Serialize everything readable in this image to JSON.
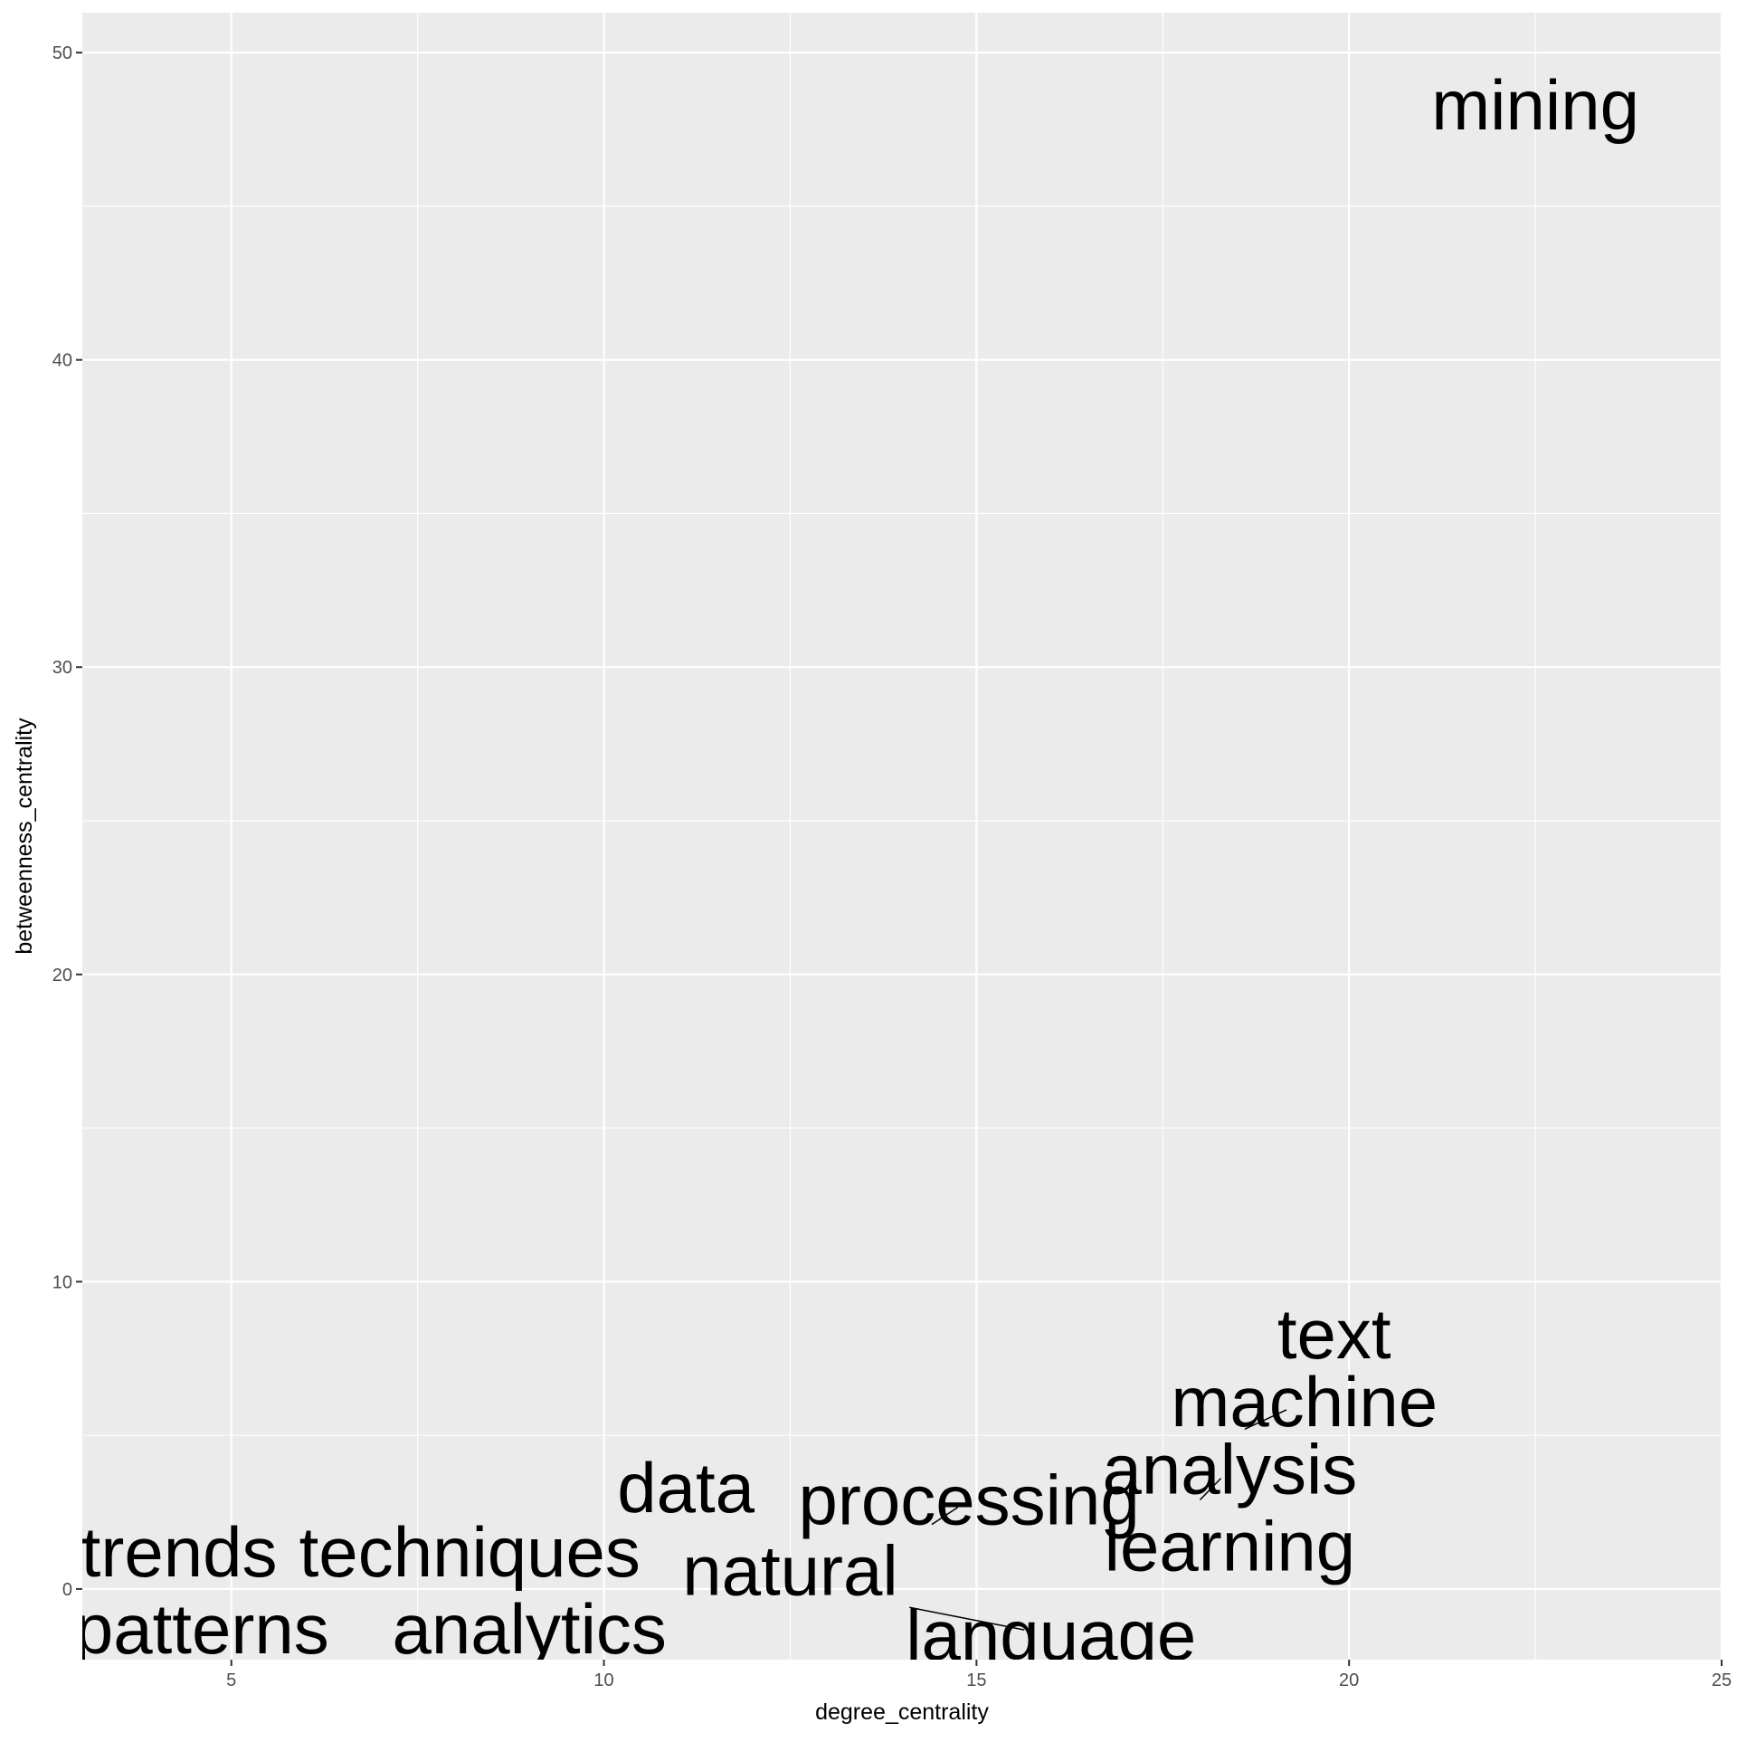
{
  "chart_data": {
    "type": "scatter",
    "title": "",
    "xlabel": "degree_centrality",
    "ylabel": "betweenness_centrality",
    "xlim": [
      3,
      25
    ],
    "ylim": [
      -2.3,
      51.3
    ],
    "x_ticks": [
      5,
      10,
      15,
      20,
      25
    ],
    "y_ticks": [
      0,
      10,
      20,
      30,
      40,
      50
    ],
    "grid": true,
    "legend": "none",
    "colors": {
      "panel_background": "#ebebeb",
      "grid_line": "#ffffff",
      "label_text": "#000000",
      "tick_text": "#4d4d4d",
      "tick_mark": "#333333"
    },
    "points": [
      {
        "label": "mining",
        "x": 22,
        "y": 48.5
      },
      {
        "label": "text",
        "x": 19.4,
        "y": 8
      },
      {
        "label": "machine",
        "x": 18.6,
        "y": 5.2
      },
      {
        "label": "analysis",
        "x": 18,
        "y": 2.9
      },
      {
        "label": "learning",
        "x": 17.9,
        "y": 1.4
      },
      {
        "label": "data",
        "x": 11.1,
        "y": 3.3
      },
      {
        "label": "processing",
        "x": 14.4,
        "y": 2.1
      },
      {
        "label": "natural",
        "x": 14,
        "y": 0.1
      },
      {
        "label": "language",
        "x": 14.1,
        "y": -0.6
      },
      {
        "label": "trends",
        "x": 4.3,
        "y": 1.2
      },
      {
        "label": "techniques",
        "x": 8.2,
        "y": 1.2
      },
      {
        "label": "patterns",
        "x": 4.4,
        "y": -1.4
      },
      {
        "label": "analytics",
        "x": 9,
        "y": -1.4
      }
    ],
    "text_labels": [
      {
        "label": "mining",
        "x": 22.5,
        "y": 48.3,
        "segment": false
      },
      {
        "label": "text",
        "x": 19.8,
        "y": 8.3,
        "segment": false
      },
      {
        "label": "machine",
        "x": 19.4,
        "y": 6.1,
        "segment": true
      },
      {
        "label": "analysis",
        "x": 18.4,
        "y": 3.9,
        "segment": true
      },
      {
        "label": "learning",
        "x": 18.4,
        "y": 1.4,
        "segment": false
      },
      {
        "label": "data",
        "x": 11.1,
        "y": 3.3,
        "segment": false
      },
      {
        "label": "processing",
        "x": 14.9,
        "y": 2.9,
        "segment": true
      },
      {
        "label": "natural",
        "x": 12.5,
        "y": 0.6,
        "segment": false
      },
      {
        "label": "language",
        "x": 16,
        "y": -1.5,
        "segment": true
      },
      {
        "label": "trends",
        "x": 4.3,
        "y": 1.2,
        "segment": false
      },
      {
        "label": "techniques",
        "x": 8.2,
        "y": 1.2,
        "segment": false
      },
      {
        "label": "patterns",
        "x": 4.6,
        "y": -1.3,
        "segment": false
      },
      {
        "label": "analytics",
        "x": 9,
        "y": -1.3,
        "segment": false
      }
    ]
  }
}
